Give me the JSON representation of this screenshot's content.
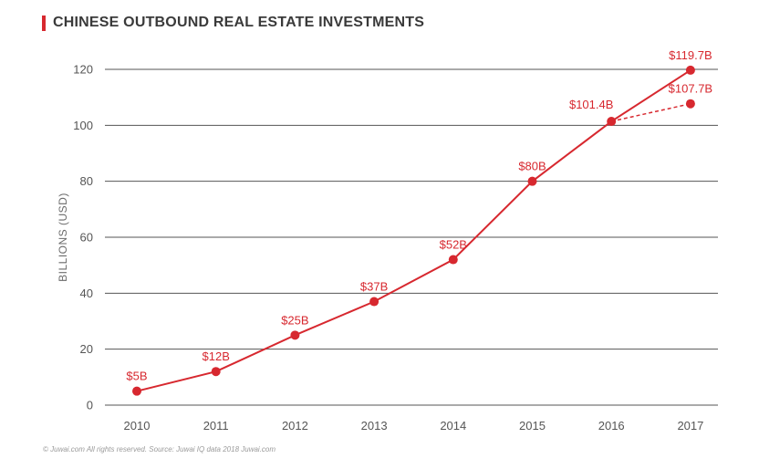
{
  "colors": {
    "accent": "#d7282f",
    "grid": "#555555",
    "text": "#3a3a3a"
  },
  "title": "CHINESE OUTBOUND REAL ESTATE INVESTMENTS",
  "footer": "© Juwai.com All rights reserved. Source: Juwai IQ data 2018 Juwai.com",
  "chart_data": {
    "type": "line",
    "title": "CHINESE OUTBOUND REAL ESTATE INVESTMENTS",
    "xlabel": "",
    "ylabel": "BILLIONS (USD)",
    "categories": [
      "2010",
      "2011",
      "2012",
      "2013",
      "2014",
      "2015",
      "2016",
      "2017"
    ],
    "ylim": [
      0,
      120
    ],
    "yticks": [
      0,
      20,
      40,
      60,
      80,
      100,
      120
    ],
    "grid": "horizontal",
    "series": [
      {
        "style": "solid",
        "values": [
          5,
          12,
          25,
          37,
          52,
          80,
          101.4,
          119.7
        ],
        "labels": [
          "$5B",
          "$12B",
          "$25B",
          "$37B",
          "$52B",
          "$80B",
          "$101.4B",
          "$119.7B"
        ]
      },
      {
        "style": "dashed",
        "x": [
          "2016",
          "2017"
        ],
        "values": [
          101.4,
          107.7
        ],
        "labels": [
          "",
          "$107.7B"
        ]
      }
    ]
  }
}
